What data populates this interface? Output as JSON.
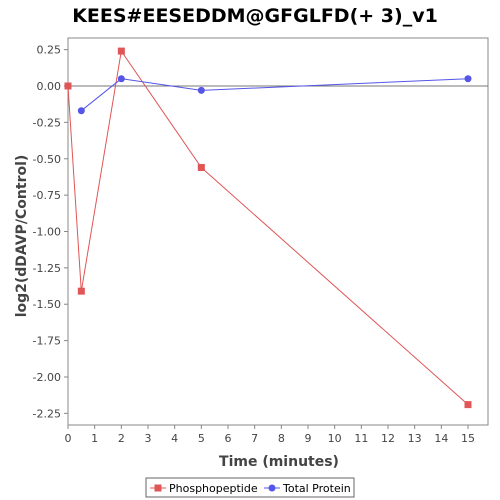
{
  "chart_data": {
    "type": "line",
    "title": "KEES#EESEDDM@GFGLFD(+ 3)_v1",
    "xlabel": "Time (minutes)",
    "ylabel": "log2(dDAVP/Control)",
    "xlim": [
      0,
      15.75
    ],
    "ylim": [
      -2.33,
      0.33
    ],
    "x_ticks": [
      0,
      1,
      2,
      3,
      4,
      5,
      6,
      7,
      8,
      9,
      10,
      11,
      12,
      13,
      14,
      15
    ],
    "y_ticks": [
      0.25,
      0.0,
      -0.25,
      -0.5,
      -0.75,
      -1.0,
      -1.25,
      -1.5,
      -1.75,
      -2.0,
      -2.25
    ],
    "y_tick_labels": [
      "0.25",
      "0.00",
      "-0.25",
      "-0.50",
      "-0.75",
      "-1.00",
      "-1.25",
      "-1.50",
      "-1.75",
      "-2.00",
      "-2.25"
    ],
    "zero_line": true,
    "grid": false,
    "legend_position": "bottom",
    "series": [
      {
        "name": "Phosphopeptide",
        "color": "#e05555",
        "marker": "square",
        "x": [
          0,
          0.5,
          2,
          5,
          15
        ],
        "y": [
          0.0,
          -1.41,
          0.24,
          -0.56,
          -2.19
        ]
      },
      {
        "name": "Total Protein",
        "color": "#5555e8",
        "marker": "circle",
        "x": [
          0.5,
          2,
          5,
          15
        ],
        "y": [
          -0.17,
          0.05,
          -0.03,
          0.05
        ]
      }
    ]
  }
}
